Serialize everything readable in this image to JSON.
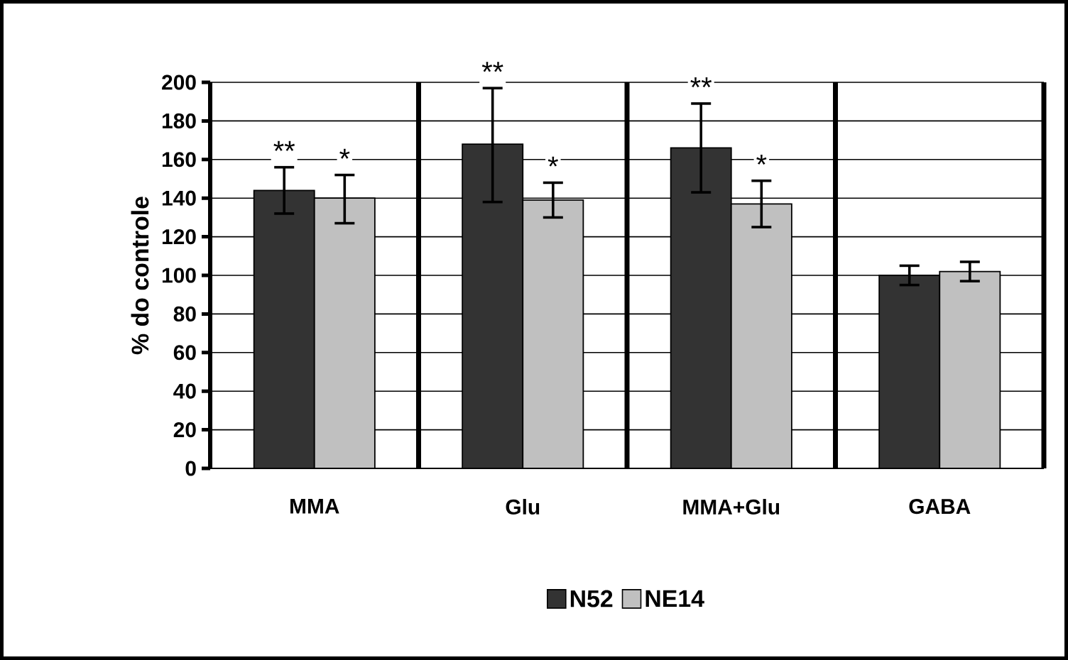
{
  "chart_data": {
    "type": "bar",
    "ylabel": "% do controle",
    "categories": [
      "MMA",
      "Glu",
      "MMA+Glu",
      "GABA"
    ],
    "series": [
      {
        "name": "N52",
        "color": "#333333",
        "values": [
          144,
          168,
          166,
          100
        ],
        "errors": [
          [
            132,
            156
          ],
          [
            138,
            197
          ],
          [
            143,
            189
          ],
          [
            95,
            105
          ]
        ]
      },
      {
        "name": "NE14",
        "color": "#c0c0c0",
        "values": [
          140,
          139,
          137,
          102
        ],
        "errors": [
          [
            127,
            152
          ],
          [
            130,
            148
          ],
          [
            125,
            149
          ],
          [
            97,
            107
          ]
        ]
      }
    ],
    "annotations": [
      "**",
      "*",
      "**",
      "*",
      "**",
      "*"
    ],
    "ylim": [
      0,
      200
    ],
    "yticks": [
      0,
      20,
      40,
      60,
      80,
      100,
      120,
      140,
      160,
      180,
      200
    ],
    "grid": true,
    "legend": "bottom"
  }
}
